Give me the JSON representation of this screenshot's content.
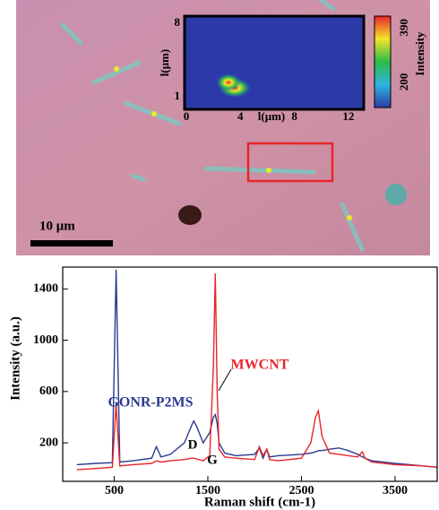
{
  "image": {
    "scale_bar": "10 μm",
    "inset": {
      "xlabel": "l(μm)",
      "ylabel": "l(μm)",
      "xlim": [
        0,
        13
      ],
      "ylim": [
        0,
        8.5
      ],
      "xticks": [
        0,
        4,
        8,
        12
      ],
      "yticks": [
        1,
        8
      ],
      "colorbar_label": "Intensity",
      "clim": [
        110,
        430
      ],
      "colorbar_ticks": [
        200,
        390
      ]
    }
  },
  "chart_data": {
    "type": "line",
    "xlabel": "Raman shift (cm-1)",
    "ylabel": "Intensity (a.u.)",
    "x": [
      100,
      300,
      480,
      520,
      560,
      700,
      900,
      950,
      1000,
      1100,
      1250,
      1330,
      1350,
      1380,
      1450,
      1520,
      1560,
      1580,
      1600,
      1620,
      1680,
      1800,
      2000,
      2050,
      2090,
      2130,
      2160,
      2250,
      2500,
      2600,
      2650,
      2680,
      2720,
      2800,
      2900,
      3000,
      3100,
      3150,
      3180,
      3250,
      3500,
      3800,
      3950
    ],
    "series": [
      {
        "name": "GONR-P2MS",
        "color": "#2b3a8f",
        "values": [
          30,
          40,
          45,
          1550,
          50,
          60,
          80,
          170,
          90,
          110,
          200,
          340,
          370,
          330,
          200,
          280,
          400,
          420,
          350,
          200,
          120,
          100,
          110,
          160,
          80,
          150,
          90,
          100,
          110,
          120,
          130,
          140,
          140,
          150,
          160,
          140,
          110,
          90,
          80,
          60,
          40,
          20,
          10
        ]
      },
      {
        "name": "MWCNT",
        "color": "#e8252b",
        "values": [
          -10,
          0,
          10,
          500,
          20,
          30,
          40,
          60,
          50,
          60,
          70,
          80,
          80,
          75,
          60,
          100,
          800,
          1520,
          600,
          150,
          90,
          80,
          70,
          170,
          100,
          150,
          70,
          60,
          80,
          200,
          400,
          450,
          250,
          120,
          110,
          100,
          90,
          130,
          80,
          50,
          30,
          20,
          10
        ]
      }
    ],
    "annotations": [
      "D",
      "G"
    ],
    "xlim": [
      -50,
      3950
    ],
    "ylim": [
      -100,
      1570
    ],
    "xticks": [
      500,
      1500,
      2500,
      3500
    ],
    "yticks": [
      200,
      600,
      1000,
      1400
    ]
  }
}
